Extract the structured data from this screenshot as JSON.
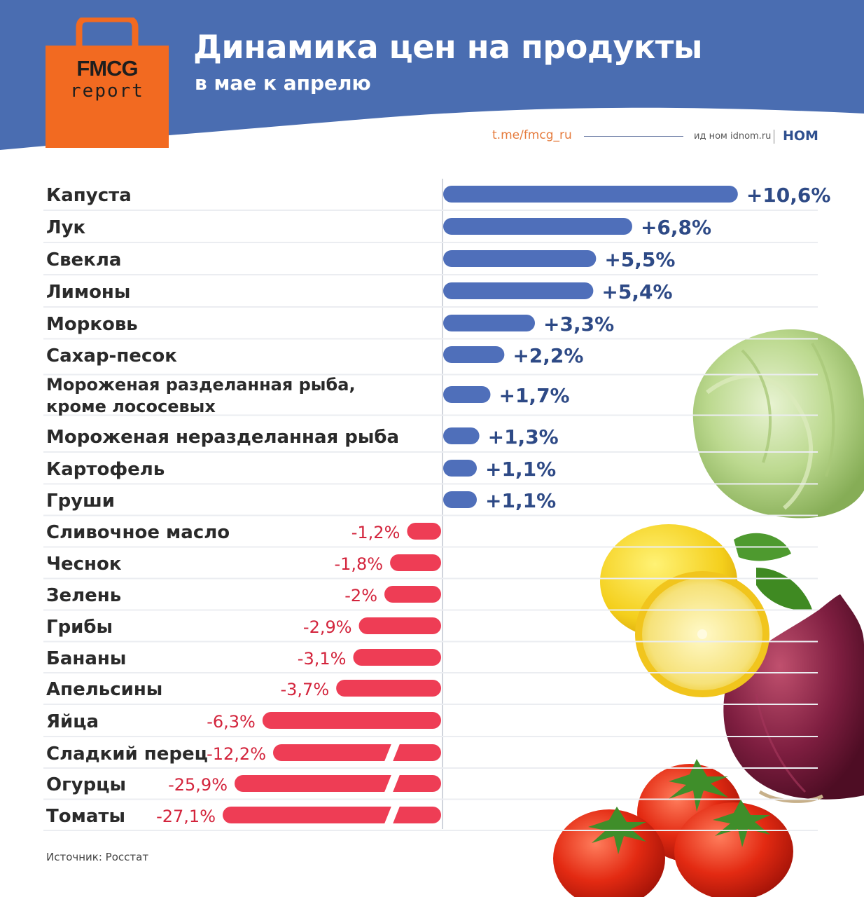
{
  "header": {
    "title": "Динамика цен на продукты",
    "subtitle": "в мае к апрелю",
    "logo_line1": "FMCG",
    "logo_line2": "report",
    "link": "t.me/fmcg_ru",
    "org_text": "ид ном idnom.ru",
    "org_logo": "НОМ"
  },
  "colors": {
    "header_blue": "#4a6db1",
    "positive_bar": "#4f6fba",
    "negative_bar": "#ee3d55",
    "positive_label": "#2e4a86",
    "negative_label": "#d3243c",
    "logo_orange": "#f26a21"
  },
  "chart_data": {
    "type": "bar",
    "orientation": "horizontal",
    "categories": [
      "Капуста",
      "Лук",
      "Свекла",
      "Лимоны",
      "Морковь",
      "Сахар-песок",
      "Мороженая разделанная рыба, кроме лососевых",
      "Мороженая неразделанная рыба",
      "Картофель",
      "Груши",
      "Сливочное масло",
      "Чеснок",
      "Зелень",
      "Грибы",
      "Бананы",
      "Апельсины",
      "Яйца",
      "Сладкий перец",
      "Огурцы",
      "Томаты"
    ],
    "values": [
      10.6,
      6.8,
      5.5,
      5.4,
      3.3,
      2.2,
      1.7,
      1.3,
      1.1,
      1.1,
      -1.2,
      -1.8,
      -2,
      -2.9,
      -3.1,
      -3.7,
      -6.3,
      -12.2,
      -25.9,
      -27.1
    ],
    "labels": [
      "+10,6%",
      "+6,8%",
      "+5,5%",
      "+5,4%",
      "+3,3%",
      "+2,2%",
      "+1,7%",
      "+1,3%",
      "+1,1%",
      "+1,1%",
      "-1,2%",
      "-1,8%",
      "-2%",
      "-2,9%",
      "-3,1%",
      "-3,7%",
      "-6,3%",
      "-12,2%",
      "-25,9%",
      "-27,1%"
    ],
    "broken_axis_bars": [
      17,
      18,
      19
    ],
    "source": "Источник: Росстат"
  },
  "images": [
    "cabbage",
    "lemon",
    "red-onion",
    "tomatoes"
  ]
}
